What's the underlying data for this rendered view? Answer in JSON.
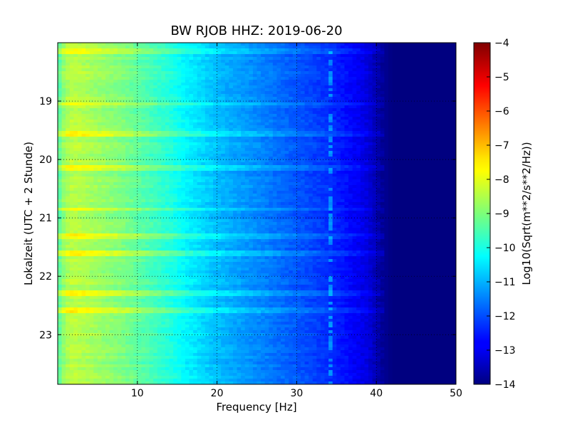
{
  "chart_data": {
    "type": "heatmap",
    "title": "BW RJOB HHZ: 2019-06-20",
    "xlabel": "Frequency [Hz]",
    "ylabel": "Lokalzeit (UTC + 2 Stunde)",
    "xlim": [
      0,
      50
    ],
    "ylim": [
      18.0,
      23.85
    ],
    "y_inverted": true,
    "x_ticks": [
      10,
      20,
      30,
      40,
      50
    ],
    "x_tick_labels": [
      "10",
      "20",
      "30",
      "40",
      "50"
    ],
    "y_ticks": [
      19,
      20,
      21,
      22,
      23
    ],
    "y_tick_labels": [
      "19",
      "20",
      "21",
      "22",
      "23"
    ],
    "grid": true,
    "colormap": "jet",
    "colorbar": {
      "label": "Log10(Sqrt(m**2/s**2/Hz))",
      "range": [
        -14,
        -4
      ],
      "ticks": [
        -4,
        -5,
        -6,
        -7,
        -8,
        -9,
        -10,
        -11,
        -12,
        -13,
        -14
      ],
      "tick_labels": [
        "−4",
        "−5",
        "−6",
        "−7",
        "−8",
        "−9",
        "−10",
        "−11",
        "−12",
        "−13",
        "−14"
      ]
    },
    "frequency_profile": {
      "frequency_hz": [
        0,
        1,
        2,
        4,
        6,
        8,
        10,
        12,
        14,
        16,
        18,
        20,
        22,
        24,
        26,
        28,
        30,
        32,
        34,
        36,
        38,
        39,
        40,
        41,
        42,
        50
      ],
      "log_amplitude": [
        -9.5,
        -8.6,
        -8.4,
        -8.6,
        -8.8,
        -9.0,
        -9.3,
        -9.6,
        -9.9,
        -10.3,
        -10.6,
        -10.9,
        -11.1,
        -11.3,
        -11.5,
        -11.7,
        -11.9,
        -12.1,
        -12.3,
        -12.6,
        -12.9,
        -13.1,
        -13.5,
        -13.8,
        -14.0,
        -14.0
      ]
    },
    "bright_events_hours": [
      18.15,
      19.05,
      19.55,
      20.15,
      20.85,
      21.3,
      21.6,
      22.3,
      22.58
    ],
    "line_feature_hz": 34.3
  }
}
